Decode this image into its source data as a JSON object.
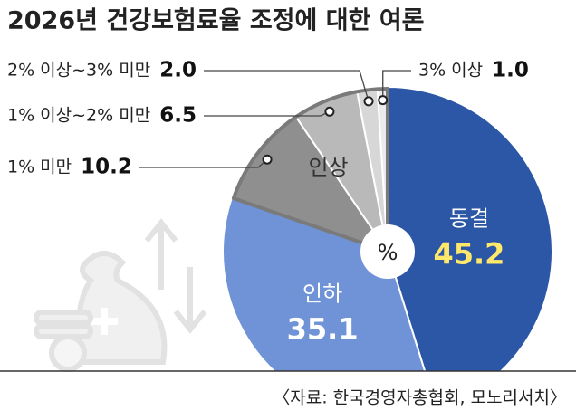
{
  "chart_data": {
    "type": "pie",
    "title": "2026년 건강보험료율 조정에 대한 여론",
    "categories": [
      "동결",
      "인하",
      "1% 미만",
      "1% 이상~2% 미만",
      "2% 이상~3% 미만",
      "3% 이상"
    ],
    "values": [
      45.2,
      35.1,
      10.2,
      6.5,
      2.0,
      1.0
    ],
    "value_labels": [
      "45.2",
      "35.1",
      "10.2",
      "6.5",
      "2.0",
      "1.0"
    ],
    "colors": [
      "#2c56a6",
      "#6f93d6",
      "#8f8f8f",
      "#b9b9b9",
      "#d7d7d7",
      "#ebebeb"
    ],
    "group_label": "인상",
    "center_label": "%",
    "source": "〈자료: 한국경영자총협회, 모노리서치〉"
  }
}
